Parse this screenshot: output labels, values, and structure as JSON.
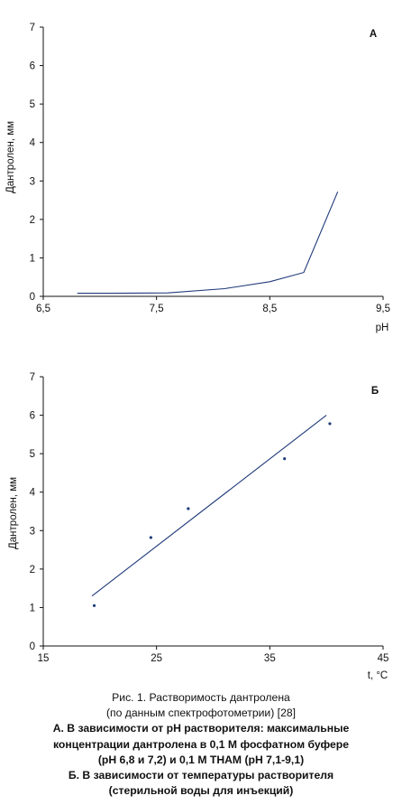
{
  "chart_data": [
    {
      "type": "line",
      "panel_label": "А",
      "xlabel": "pH",
      "ylabel": "Дантролен, мм",
      "xlim": [
        6.5,
        9.5
      ],
      "ylim": [
        0,
        7
      ],
      "x_ticks": [
        "6,5",
        "7,5",
        "8,5",
        "9,5"
      ],
      "y_ticks": [
        "0",
        "1",
        "2",
        "3",
        "4",
        "5",
        "6",
        "7"
      ],
      "x_tick_values": [
        6.5,
        7.5,
        8.5,
        9.5
      ],
      "y_tick_values": [
        0,
        1,
        2,
        3,
        4,
        5,
        6,
        7
      ],
      "grid": false,
      "series": [
        {
          "x": [
            6.8,
            7.1,
            7.6,
            8.1,
            8.5,
            8.8,
            9.1
          ],
          "y": [
            0.08,
            0.08,
            0.09,
            0.2,
            0.38,
            0.62,
            2.72
          ]
        }
      ]
    },
    {
      "type": "scatter",
      "panel_label": "Б",
      "xlabel": "t, °C",
      "ylabel": "Дантролен, мм",
      "xlim": [
        15,
        45
      ],
      "ylim": [
        0,
        7
      ],
      "x_ticks": [
        "15",
        "25",
        "35",
        "45"
      ],
      "y_ticks": [
        "0",
        "1",
        "2",
        "3",
        "4",
        "5",
        "6",
        "7"
      ],
      "x_tick_values": [
        15,
        25,
        35,
        45
      ],
      "y_tick_values": [
        0,
        1,
        2,
        3,
        4,
        5,
        6,
        7
      ],
      "grid": false,
      "series": [
        {
          "x": [
            19.5,
            24.5,
            27.8,
            36.3,
            40.3
          ],
          "y": [
            1.05,
            2.82,
            3.57,
            4.87,
            5.78
          ]
        }
      ],
      "trendline": {
        "x": [
          19.3,
          40.0
        ],
        "y": [
          1.3,
          6.0
        ]
      }
    }
  ],
  "caption": {
    "title_lines": [
      "Рис. 1. Растворимость дантролена",
      "(по данным спектрофотометрии) [28]"
    ],
    "body_lines": [
      "А. В зависимости от pH растворителя: максимальные",
      "концентрации дантролена в 0,1 М фосфатном буфере",
      "(pH 6,8 и 7,2) и 0,1 М THAM (pH 7,1-9,1)",
      "Б. В зависимости от температуры растворителя",
      "(стерильной воды для инъекций)"
    ]
  },
  "colors": {
    "series": "#1f3a7a",
    "axis": "#111111"
  }
}
